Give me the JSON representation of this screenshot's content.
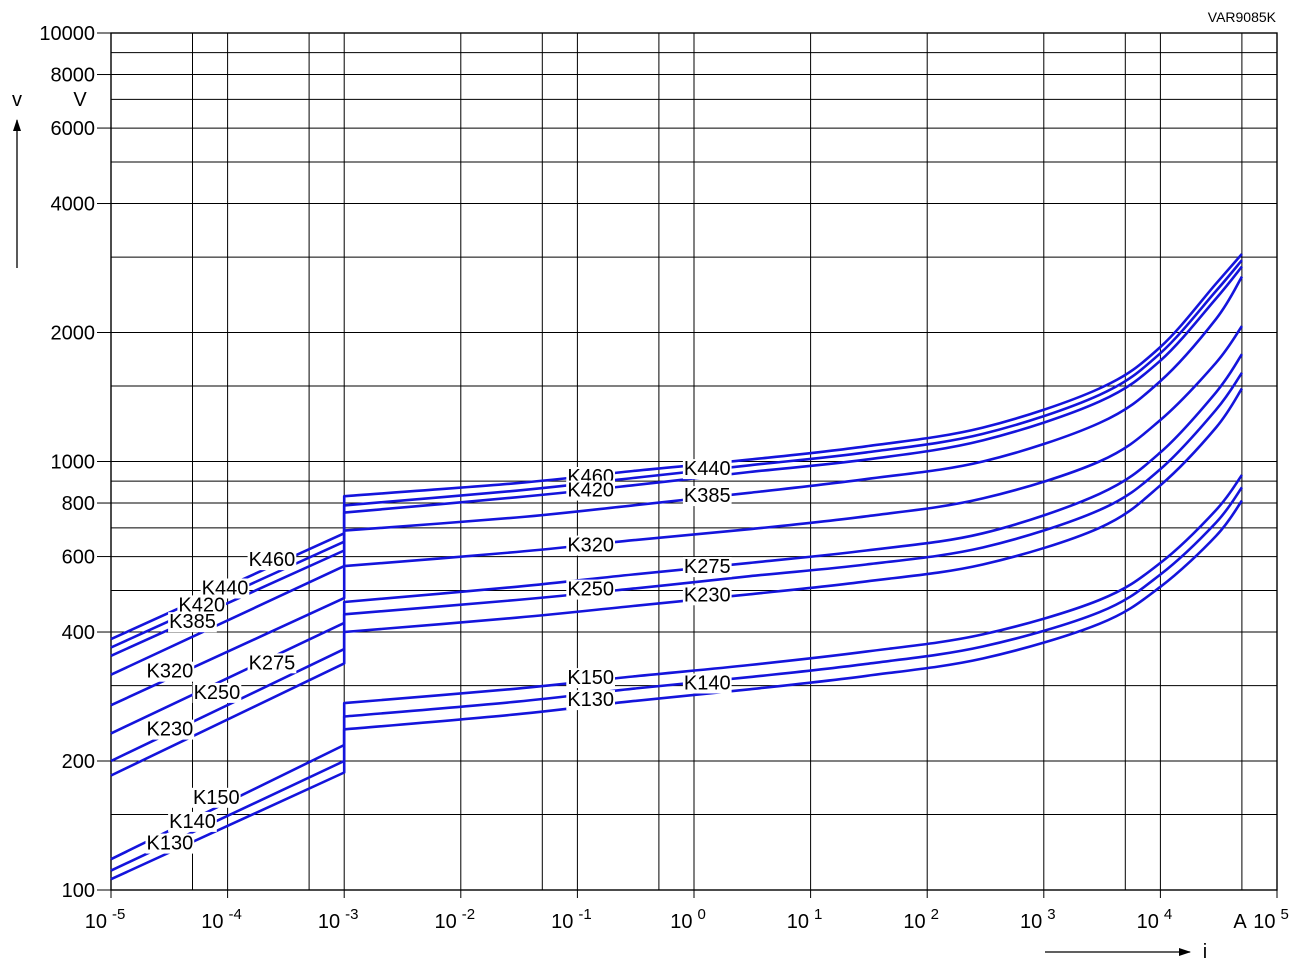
{
  "chart_data": {
    "type": "line",
    "code": "VAR9085K",
    "ylabel": "v",
    "yunit": "V",
    "xlabel": "i",
    "xunit": "A",
    "xscale": "log",
    "yscale": "log",
    "xlim": [
      1e-05,
      100000
    ],
    "ylim": [
      100,
      10000
    ],
    "grid": true,
    "line_color": "#1414dc",
    "x_ticks": [
      {
        "base": "10",
        "exp": "-5",
        "value": 1e-05
      },
      {
        "base": "10",
        "exp": "-4",
        "value": 0.0001
      },
      {
        "base": "10",
        "exp": "-3",
        "value": 0.001
      },
      {
        "base": "10",
        "exp": "-2",
        "value": 0.01
      },
      {
        "base": "10",
        "exp": "-1",
        "value": 0.1
      },
      {
        "base": "10",
        "exp": "0",
        "value": 1
      },
      {
        "base": "10",
        "exp": "1",
        "value": 10
      },
      {
        "base": "10",
        "exp": "2",
        "value": 100
      },
      {
        "base": "10",
        "exp": "3",
        "value": 1000
      },
      {
        "base": "10",
        "exp": "4",
        "value": 10000
      },
      {
        "base": "10",
        "exp": "5",
        "value": 100000
      }
    ],
    "y_ticks": [
      {
        "label": "100",
        "value": 100
      },
      {
        "label": "200",
        "value": 200
      },
      {
        "label": "400",
        "value": 400
      },
      {
        "label": "600",
        "value": 600
      },
      {
        "label": "800",
        "value": 800
      },
      {
        "label": "1000",
        "value": 1000
      },
      {
        "label": "2000",
        "value": 2000
      },
      {
        "label": "4000",
        "value": 4000
      },
      {
        "label": "6000",
        "value": 6000
      },
      {
        "label": "8000",
        "value": 8000
      },
      {
        "label": "10000",
        "value": 10000
      }
    ],
    "y_gridlines": [
      100,
      150,
      200,
      300,
      400,
      500,
      600,
      700,
      800,
      900,
      1000,
      1500,
      2000,
      3000,
      4000,
      5000,
      6000,
      7000,
      8000,
      9000,
      10000
    ],
    "x_gridlines": [
      1e-05,
      5e-05,
      0.0001,
      0.0005,
      0.001,
      0.01,
      0.05,
      0.1,
      0.5,
      1,
      10,
      100,
      1000,
      5000,
      10000,
      50000,
      100000
    ],
    "series": [
      {
        "name": "K460",
        "low": {
          "x": [
            1e-05,
            0.001
          ],
          "y": [
            385,
            680
          ]
        },
        "high": {
          "x": [
            0.001,
            0.03,
            0.3,
            3,
            30,
            300,
            3000,
            10000,
            30000,
            50000
          ],
          "y": [
            830,
            890,
            950,
            1010,
            1085,
            1200,
            1480,
            1850,
            2600,
            3050
          ]
        }
      },
      {
        "name": "K440",
        "low": {
          "x": [
            1e-05,
            0.001
          ],
          "y": [
            368,
            650
          ]
        },
        "high": {
          "x": [
            0.001,
            0.03,
            0.3,
            3,
            30,
            300,
            3000,
            10000,
            30000,
            50000
          ],
          "y": [
            790,
            855,
            915,
            980,
            1050,
            1160,
            1430,
            1790,
            2500,
            2950
          ]
        }
      },
      {
        "name": "K420",
        "low": {
          "x": [
            1e-05,
            0.001
          ],
          "y": [
            352,
            620
          ]
        },
        "high": {
          "x": [
            0.001,
            0.03,
            0.3,
            3,
            30,
            300,
            3000,
            10000,
            30000,
            50000
          ],
          "y": [
            760,
            825,
            880,
            945,
            1010,
            1120,
            1380,
            1720,
            2400,
            2850
          ]
        }
      },
      {
        "name": "K385",
        "low": {
          "x": [
            1e-05,
            0.001
          ],
          "y": [
            318,
            570
          ]
        },
        "high": {
          "x": [
            0.001,
            0.03,
            0.3,
            3,
            30,
            300,
            3000,
            10000,
            30000,
            50000
          ],
          "y": [
            690,
            740,
            790,
            845,
            910,
            1000,
            1230,
            1540,
            2150,
            2700
          ]
        }
      },
      {
        "name": "K320",
        "low": {
          "x": [
            1e-05,
            0.001
          ],
          "y": [
            270,
            480
          ]
        },
        "high": {
          "x": [
            0.001,
            0.03,
            0.3,
            3,
            30,
            300,
            3000,
            10000,
            30000,
            50000
          ],
          "y": [
            570,
            615,
            655,
            695,
            745,
            820,
            1000,
            1250,
            1700,
            2070
          ]
        }
      },
      {
        "name": "K275",
        "low": {
          "x": [
            1e-05,
            0.001
          ],
          "y": [
            232,
            420
          ]
        },
        "high": {
          "x": [
            0.001,
            0.03,
            0.3,
            3,
            30,
            300,
            3000,
            10000,
            30000,
            50000
          ],
          "y": [
            470,
            510,
            545,
            580,
            620,
            680,
            840,
            1050,
            1450,
            1780
          ]
        }
      },
      {
        "name": "K250",
        "low": {
          "x": [
            1e-05,
            0.001
          ],
          "y": [
            200,
            365
          ]
        },
        "high": {
          "x": [
            0.001,
            0.03,
            0.3,
            3,
            30,
            300,
            3000,
            10000,
            30000,
            50000
          ],
          "y": [
            440,
            475,
            505,
            540,
            575,
            630,
            770,
            960,
            1320,
            1610
          ]
        }
      },
      {
        "name": "K230",
        "low": {
          "x": [
            1e-05,
            0.001
          ],
          "y": [
            185,
            338
          ]
        },
        "high": {
          "x": [
            0.001,
            0.03,
            0.3,
            3,
            30,
            300,
            3000,
            10000,
            30000,
            50000
          ],
          "y": [
            400,
            432,
            460,
            490,
            525,
            575,
            700,
            880,
            1200,
            1480
          ]
        }
      },
      {
        "name": "K150",
        "low": {
          "x": [
            1e-05,
            0.001
          ],
          "y": [
            118,
            218
          ]
        },
        "high": {
          "x": [
            0.001,
            0.03,
            0.3,
            3,
            30,
            300,
            3000,
            10000,
            30000,
            50000
          ],
          "y": [
            273,
            295,
            315,
            335,
            360,
            395,
            475,
            580,
            770,
            930
          ]
        }
      },
      {
        "name": "K140",
        "low": {
          "x": [
            1e-05,
            0.001
          ],
          "y": [
            111,
            200
          ]
        },
        "high": {
          "x": [
            0.001,
            0.03,
            0.3,
            3,
            30,
            300,
            3000,
            10000,
            30000,
            50000
          ],
          "y": [
            254,
            275,
            295,
            314,
            337,
            370,
            445,
            545,
            720,
            870
          ]
        }
      },
      {
        "name": "K130",
        "low": {
          "x": [
            1e-05,
            0.001
          ],
          "y": [
            106,
            188
          ]
        },
        "high": {
          "x": [
            0.001,
            0.03,
            0.3,
            3,
            30,
            300,
            3000,
            10000,
            30000,
            50000
          ],
          "y": [
            237,
            257,
            276,
            294,
            316,
            347,
            418,
            510,
            670,
            810
          ]
        }
      }
    ],
    "annotations": [
      {
        "text": "K460",
        "x": 0.00024,
        "y": 592
      },
      {
        "text": "K440",
        "x": 9.5e-05,
        "y": 508
      },
      {
        "text": "K420",
        "x": 6e-05,
        "y": 464
      },
      {
        "text": "K385",
        "x": 5e-05,
        "y": 424
      },
      {
        "text": "K320",
        "x": 3.2e-05,
        "y": 325
      },
      {
        "text": "K275",
        "x": 0.00024,
        "y": 340
      },
      {
        "text": "K250",
        "x": 8.1e-05,
        "y": 290
      },
      {
        "text": "K230",
        "x": 3.2e-05,
        "y": 238
      },
      {
        "text": "K150",
        "x": 8e-05,
        "y": 165
      },
      {
        "text": "K140",
        "x": 5e-05,
        "y": 145
      },
      {
        "text": "K130",
        "x": 3.2e-05,
        "y": 129
      },
      {
        "text": "K460",
        "x": 0.13,
        "y": 925
      },
      {
        "text": "K420",
        "x": 0.13,
        "y": 860
      },
      {
        "text": "K320",
        "x": 0.13,
        "y": 640
      },
      {
        "text": "K250",
        "x": 0.13,
        "y": 505
      },
      {
        "text": "K150",
        "x": 0.13,
        "y": 314
      },
      {
        "text": "K130",
        "x": 0.13,
        "y": 279
      },
      {
        "text": "K440",
        "x": 1.3,
        "y": 965
      },
      {
        "text": "K385",
        "x": 1.3,
        "y": 835
      },
      {
        "text": "K275",
        "x": 1.3,
        "y": 570
      },
      {
        "text": "K230",
        "x": 1.3,
        "y": 490
      },
      {
        "text": "K140",
        "x": 1.3,
        "y": 305
      }
    ]
  }
}
